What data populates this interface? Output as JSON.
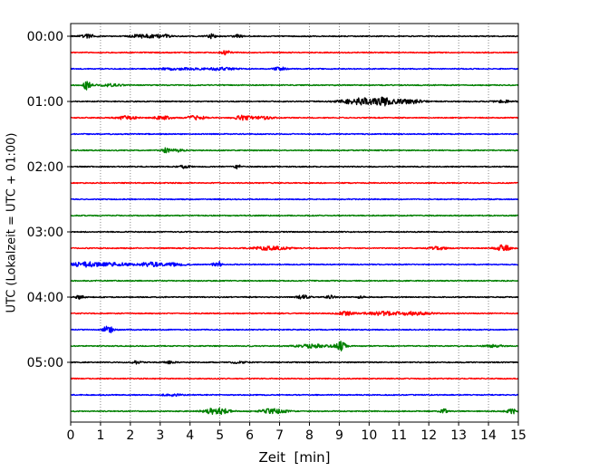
{
  "chart_data": {
    "type": "line",
    "title": "",
    "xlabel": "Zeit  [min]",
    "ylabel": "UTC (Lokalzeit = UTC + 01:00)",
    "xlim": [
      0,
      15
    ],
    "x_ticks": [
      0,
      1,
      2,
      3,
      4,
      5,
      6,
      7,
      8,
      9,
      10,
      11,
      12,
      13,
      14,
      15
    ],
    "x_tick_labels": [
      "0",
      "1",
      "2",
      "3",
      "4",
      "5",
      "6",
      "7",
      "8",
      "9",
      "10",
      "11",
      "12",
      "13",
      "14",
      "15"
    ],
    "y_tick_labels": [
      "00:00",
      "01:00",
      "02:00",
      "03:00",
      "04:00",
      "05:00"
    ],
    "y_tick_trace_index": [
      0,
      4,
      8,
      12,
      16,
      20
    ],
    "grid": "vertical dotted at each minute",
    "trace_colors": [
      "#000000",
      "#ff0000",
      "#0000ff",
      "#008000"
    ],
    "traces": [
      {
        "start": "00:00",
        "color": "#000000",
        "bursts": [
          {
            "t": 0.6,
            "a": 3,
            "w": 0.25
          },
          {
            "t": 2.3,
            "a": 3,
            "w": 0.3
          },
          {
            "t": 2.8,
            "a": 2.5,
            "w": 0.3
          },
          {
            "t": 3.2,
            "a": 2.5,
            "w": 0.2
          },
          {
            "t": 4.7,
            "a": 4,
            "w": 0.15
          },
          {
            "t": 5.6,
            "a": 3,
            "w": 0.15
          }
        ]
      },
      {
        "start": "00:15",
        "color": "#ff0000",
        "bursts": [
          {
            "t": 5.2,
            "a": 4,
            "w": 0.15
          }
        ]
      },
      {
        "start": "00:30",
        "color": "#0000ff",
        "bursts": [
          {
            "t": 3.6,
            "a": 2,
            "w": 0.6
          },
          {
            "t": 5.0,
            "a": 2.5,
            "w": 0.5
          },
          {
            "t": 7.0,
            "a": 3,
            "w": 0.2
          }
        ]
      },
      {
        "start": "00:45",
        "color": "#008000",
        "bursts": [
          {
            "t": 0.55,
            "a": 8,
            "w": 0.12
          },
          {
            "t": 1.3,
            "a": 2,
            "w": 0.4
          }
        ]
      },
      {
        "start": "01:00",
        "color": "#000000",
        "bursts": [
          {
            "t": 9.7,
            "a": 6,
            "w": 0.6
          },
          {
            "t": 10.5,
            "a": 6,
            "w": 0.3
          },
          {
            "t": 11.3,
            "a": 4,
            "w": 0.5
          },
          {
            "t": 14.5,
            "a": 2,
            "w": 0.3
          }
        ]
      },
      {
        "start": "01:15",
        "color": "#ff0000",
        "bursts": [
          {
            "t": 1.9,
            "a": 4,
            "w": 0.3
          },
          {
            "t": 3.1,
            "a": 3,
            "w": 0.3
          },
          {
            "t": 4.2,
            "a": 4,
            "w": 0.3
          },
          {
            "t": 5.8,
            "a": 4,
            "w": 0.3
          },
          {
            "t": 6.5,
            "a": 2.5,
            "w": 0.3
          }
        ]
      },
      {
        "start": "01:30",
        "color": "#0000ff",
        "bursts": []
      },
      {
        "start": "01:45",
        "color": "#008000",
        "bursts": [
          {
            "t": 3.2,
            "a": 4,
            "w": 0.15
          },
          {
            "t": 3.6,
            "a": 2.5,
            "w": 0.2
          }
        ]
      },
      {
        "start": "02:00",
        "color": "#000000",
        "bursts": [
          {
            "t": 3.8,
            "a": 2.5,
            "w": 0.2
          },
          {
            "t": 5.6,
            "a": 4,
            "w": 0.1
          }
        ]
      },
      {
        "start": "02:15",
        "color": "#ff0000",
        "bursts": []
      },
      {
        "start": "02:30",
        "color": "#0000ff",
        "bursts": []
      },
      {
        "start": "02:45",
        "color": "#008000",
        "bursts": []
      },
      {
        "start": "03:00",
        "color": "#000000",
        "bursts": []
      },
      {
        "start": "03:15",
        "color": "#ff0000",
        "bursts": [
          {
            "t": 6.7,
            "a": 3,
            "w": 0.6
          },
          {
            "t": 12.3,
            "a": 2.5,
            "w": 0.3
          },
          {
            "t": 14.5,
            "a": 6,
            "w": 0.25
          }
        ]
      },
      {
        "start": "03:30",
        "color": "#0000ff",
        "bursts": [
          {
            "t": 0.5,
            "a": 4,
            "w": 0.6
          },
          {
            "t": 1.5,
            "a": 3,
            "w": 0.5
          },
          {
            "t": 2.7,
            "a": 4,
            "w": 0.4
          },
          {
            "t": 3.5,
            "a": 3,
            "w": 0.3
          },
          {
            "t": 4.9,
            "a": 8,
            "w": 0.12
          }
        ]
      },
      {
        "start": "03:45",
        "color": "#008000",
        "bursts": []
      },
      {
        "start": "04:00",
        "color": "#000000",
        "bursts": [
          {
            "t": 0.3,
            "a": 3,
            "w": 0.15
          },
          {
            "t": 7.8,
            "a": 3.5,
            "w": 0.2
          },
          {
            "t": 8.7,
            "a": 3,
            "w": 0.15
          },
          {
            "t": 9.7,
            "a": 3,
            "w": 0.1
          }
        ]
      },
      {
        "start": "04:15",
        "color": "#ff0000",
        "bursts": [
          {
            "t": 9.2,
            "a": 3,
            "w": 0.3
          },
          {
            "t": 10.4,
            "a": 3,
            "w": 0.5
          },
          {
            "t": 11.4,
            "a": 3,
            "w": 0.6
          }
        ]
      },
      {
        "start": "04:30",
        "color": "#0000ff",
        "bursts": [
          {
            "t": 1.25,
            "a": 8,
            "w": 0.15
          }
        ]
      },
      {
        "start": "04:45",
        "color": "#008000",
        "bursts": [
          {
            "t": 8.1,
            "a": 3,
            "w": 0.5
          },
          {
            "t": 9.0,
            "a": 9,
            "w": 0.2
          },
          {
            "t": 14.2,
            "a": 2,
            "w": 0.3
          }
        ]
      },
      {
        "start": "05:00",
        "color": "#000000",
        "bursts": [
          {
            "t": 2.2,
            "a": 2.5,
            "w": 0.15
          },
          {
            "t": 3.3,
            "a": 2,
            "w": 0.2
          },
          {
            "t": 5.6,
            "a": 2,
            "w": 0.2
          }
        ]
      },
      {
        "start": "05:15",
        "color": "#ff0000",
        "bursts": []
      },
      {
        "start": "05:30",
        "color": "#0000ff",
        "bursts": [
          {
            "t": 3.4,
            "a": 2,
            "w": 0.3
          }
        ]
      },
      {
        "start": "05:45",
        "color": "#008000",
        "bursts": [
          {
            "t": 4.9,
            "a": 6,
            "w": 0.4
          },
          {
            "t": 6.8,
            "a": 5,
            "w": 0.4
          },
          {
            "t": 12.5,
            "a": 4,
            "w": 0.12
          },
          {
            "t": 14.8,
            "a": 4,
            "w": 0.2
          }
        ]
      }
    ]
  }
}
